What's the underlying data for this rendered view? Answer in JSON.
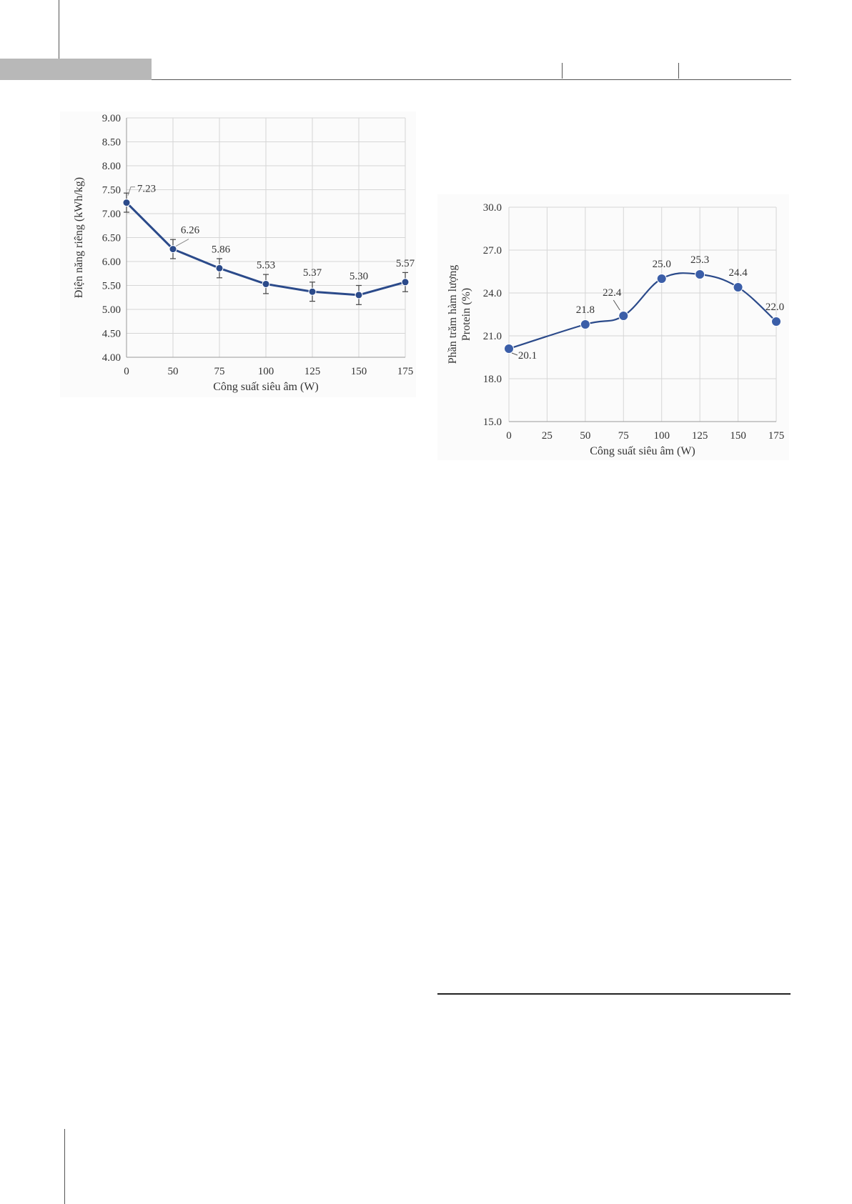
{
  "colors": {
    "series": "#2b4a8a",
    "marker": "#3b5ea8",
    "grid": "#d6d6d6",
    "axis": "#9a9a9a",
    "text": "#333333"
  },
  "chart_data": [
    {
      "type": "line",
      "title": "",
      "xlabel": "Công suất siêu âm (W)",
      "ylabel": "Điện năng riêng (kWh/kg)",
      "x": [
        0,
        50,
        75,
        100,
        125,
        150,
        175
      ],
      "y": [
        7.23,
        6.26,
        5.86,
        5.53,
        5.37,
        5.3,
        5.57
      ],
      "data_labels": [
        "7.23",
        "6.26",
        "5.86",
        "5.53",
        "5.37",
        "5.30",
        "5.57"
      ],
      "error_bars": [
        0.2,
        0.2,
        0.2,
        0.2,
        0.2,
        0.2,
        0.2
      ],
      "x_ticks": [
        "0",
        "50",
        "75",
        "100",
        "125",
        "150",
        "175"
      ],
      "y_ticks": [
        "4.00",
        "4.50",
        "5.00",
        "5.50",
        "6.00",
        "6.50",
        "7.00",
        "7.50",
        "8.00",
        "8.50",
        "9.00"
      ],
      "ylim": [
        4.0,
        9.0
      ],
      "grid": true,
      "legend": "none"
    },
    {
      "type": "line",
      "title": "",
      "xlabel": "Công suất siêu âm (W)",
      "ylabel": "Phần trăm hàm lượng Protein (%)",
      "x": [
        0,
        50,
        75,
        100,
        125,
        150,
        175
      ],
      "y": [
        20.1,
        21.8,
        22.4,
        25.0,
        25.3,
        24.4,
        22.0
      ],
      "data_labels": [
        "20.1",
        "21.8",
        "22.4",
        "25.0",
        "25.3",
        "24.4",
        "22.0"
      ],
      "x_ticks": [
        "0",
        "25",
        "50",
        "75",
        "100",
        "125",
        "150",
        "175"
      ],
      "y_ticks": [
        "15.0",
        "18.0",
        "21.0",
        "24.0",
        "27.0",
        "30.0"
      ],
      "xlim": [
        0,
        175
      ],
      "ylim": [
        15.0,
        30.0
      ],
      "smooth": true,
      "grid": true,
      "legend": "none"
    }
  ]
}
